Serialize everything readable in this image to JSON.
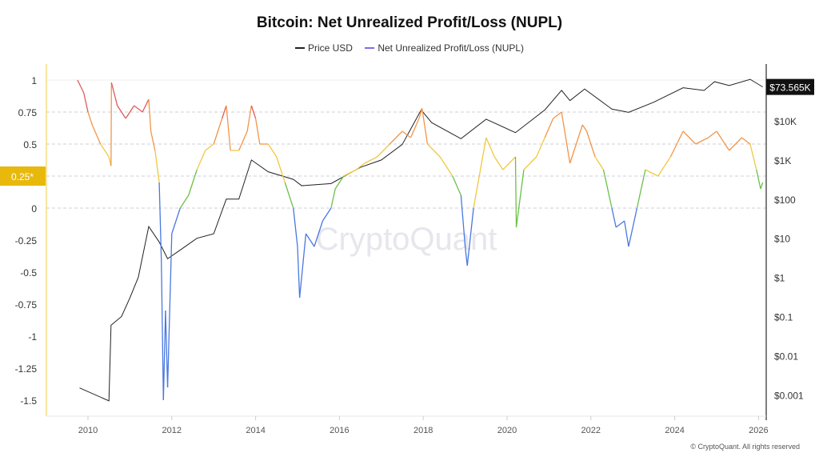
{
  "chart_data": {
    "type": "line",
    "title": "Bitcoin: Net Unrealized Profit/Loss (NUPL)",
    "legend": [
      "Price USD",
      "Net Unrealized Profit/Loss (NUPL)"
    ],
    "legend_placement": "top-center",
    "x_ticks": [
      "2010",
      "2012",
      "2014",
      "2016",
      "2018",
      "2020",
      "2022",
      "2024",
      "2026"
    ],
    "xlim": [
      2009.0,
      2026.2
    ],
    "left_axis": {
      "ticks": [
        1,
        0.75,
        0.5,
        0.25,
        0,
        -0.25,
        -0.5,
        -0.75,
        -1,
        -1.25,
        -1.5
      ],
      "tick_labels": [
        "1",
        "0.75",
        "0.5",
        "0.25*",
        "0",
        "-0.25",
        "-0.5",
        "-0.75",
        "-1",
        "-1.25",
        "-1.5"
      ],
      "ylim": [
        -1.65,
        1.1
      ],
      "highlight_tick": "0.25*"
    },
    "right_axis": {
      "scale": "log",
      "ticks": [
        10000,
        1000,
        100,
        10,
        1,
        0.1,
        0.01,
        0.001
      ],
      "tick_labels": [
        "$10K",
        "$1K",
        "$100",
        "$10",
        "$1",
        "$0.1",
        "$0.01",
        "$0.001"
      ],
      "ylim": [
        0.0005,
        200000
      ]
    },
    "current_price_label": "$73.565K",
    "grid": "horizontal dashed",
    "colors": {
      "price": "#222222",
      "legend_nupl": "#7b6cf0",
      "euphoria": "#e05a5a",
      "belief": "#f2954a",
      "optimism": "#f0c940",
      "hope": "#6cc04a",
      "capitulation": "#4a78e0",
      "highlight": "#e8b90c"
    },
    "series": [
      {
        "name": "Net Unrealized Profit/Loss (NUPL)",
        "axis": "left",
        "x": [
          2009.75,
          2009.9,
          2010.0,
          2010.1,
          2010.3,
          2010.5,
          2010.55,
          2010.56,
          2010.7,
          2010.9,
          2011.1,
          2011.3,
          2011.45,
          2011.5,
          2011.6,
          2011.7,
          2011.75,
          2011.8,
          2011.85,
          2011.9,
          2012.0,
          2012.2,
          2012.4,
          2012.6,
          2012.8,
          2013.0,
          2013.2,
          2013.3,
          2013.4,
          2013.6,
          2013.8,
          2013.9,
          2014.0,
          2014.1,
          2014.3,
          2014.5,
          2014.7,
          2014.9,
          2015.0,
          2015.05,
          2015.2,
          2015.4,
          2015.6,
          2015.8,
          2015.9,
          2016.1,
          2016.4,
          2016.6,
          2016.9,
          2017.2,
          2017.5,
          2017.7,
          2017.9,
          2017.97,
          2018.1,
          2018.4,
          2018.7,
          2018.9,
          2019.0,
          2019.05,
          2019.2,
          2019.5,
          2019.7,
          2019.9,
          2020.2,
          2020.22,
          2020.4,
          2020.7,
          2020.9,
          2021.1,
          2021.3,
          2021.5,
          2021.8,
          2021.9,
          2022.1,
          2022.3,
          2022.5,
          2022.6,
          2022.8,
          2022.9,
          2023.1,
          2023.3,
          2023.6,
          2023.9,
          2024.2,
          2024.5,
          2024.8,
          2025.0,
          2025.3,
          2025.6,
          2025.8,
          2025.95,
          2026.05,
          2026.1
        ],
        "y": [
          1.0,
          0.9,
          0.75,
          0.65,
          0.5,
          0.4,
          0.33,
          0.98,
          0.8,
          0.7,
          0.8,
          0.75,
          0.85,
          0.6,
          0.45,
          0.2,
          -0.4,
          -1.5,
          -0.8,
          -1.4,
          -0.2,
          0.0,
          0.1,
          0.3,
          0.45,
          0.5,
          0.7,
          0.8,
          0.45,
          0.45,
          0.6,
          0.8,
          0.7,
          0.5,
          0.5,
          0.4,
          0.2,
          0.0,
          -0.3,
          -0.7,
          -0.2,
          -0.3,
          -0.1,
          0.0,
          0.15,
          0.25,
          0.3,
          0.35,
          0.4,
          0.5,
          0.6,
          0.55,
          0.7,
          0.78,
          0.5,
          0.4,
          0.25,
          0.1,
          -0.3,
          -0.45,
          0.0,
          0.55,
          0.4,
          0.3,
          0.4,
          -0.15,
          0.3,
          0.4,
          0.55,
          0.7,
          0.75,
          0.35,
          0.65,
          0.6,
          0.4,
          0.3,
          0.0,
          -0.15,
          -0.1,
          -0.3,
          0.0,
          0.3,
          0.25,
          0.4,
          0.6,
          0.5,
          0.55,
          0.6,
          0.45,
          0.55,
          0.5,
          0.3,
          0.15,
          0.2
        ]
      },
      {
        "name": "Price USD",
        "axis": "right",
        "x": [
          2009.8,
          2010.5,
          2010.55,
          2010.8,
          2011.0,
          2011.2,
          2011.45,
          2011.7,
          2011.9,
          2012.2,
          2012.6,
          2013.0,
          2013.3,
          2013.6,
          2013.9,
          2014.3,
          2014.9,
          2015.1,
          2015.8,
          2016.5,
          2017.0,
          2017.5,
          2017.95,
          2018.2,
          2018.9,
          2019.5,
          2020.2,
          2020.9,
          2021.3,
          2021.5,
          2021.85,
          2022.5,
          2022.9,
          2023.5,
          2024.2,
          2024.7,
          2024.95,
          2025.3,
          2025.8,
          2026.1
        ],
        "y": [
          0.0015,
          0.0007,
          0.06,
          0.1,
          0.3,
          1,
          20,
          8,
          3,
          5,
          10,
          13,
          100,
          100,
          1000,
          500,
          320,
          220,
          250,
          650,
          1000,
          2500,
          19000,
          9000,
          3500,
          11000,
          5000,
          19000,
          60000,
          33000,
          65000,
          20000,
          16500,
          30000,
          70000,
          60000,
          100000,
          80000,
          115000,
          73565
        ]
      }
    ]
  },
  "footer": {
    "copyright": "© CryptoQuant. All rights reserved"
  },
  "watermark": "CryptoQuant"
}
